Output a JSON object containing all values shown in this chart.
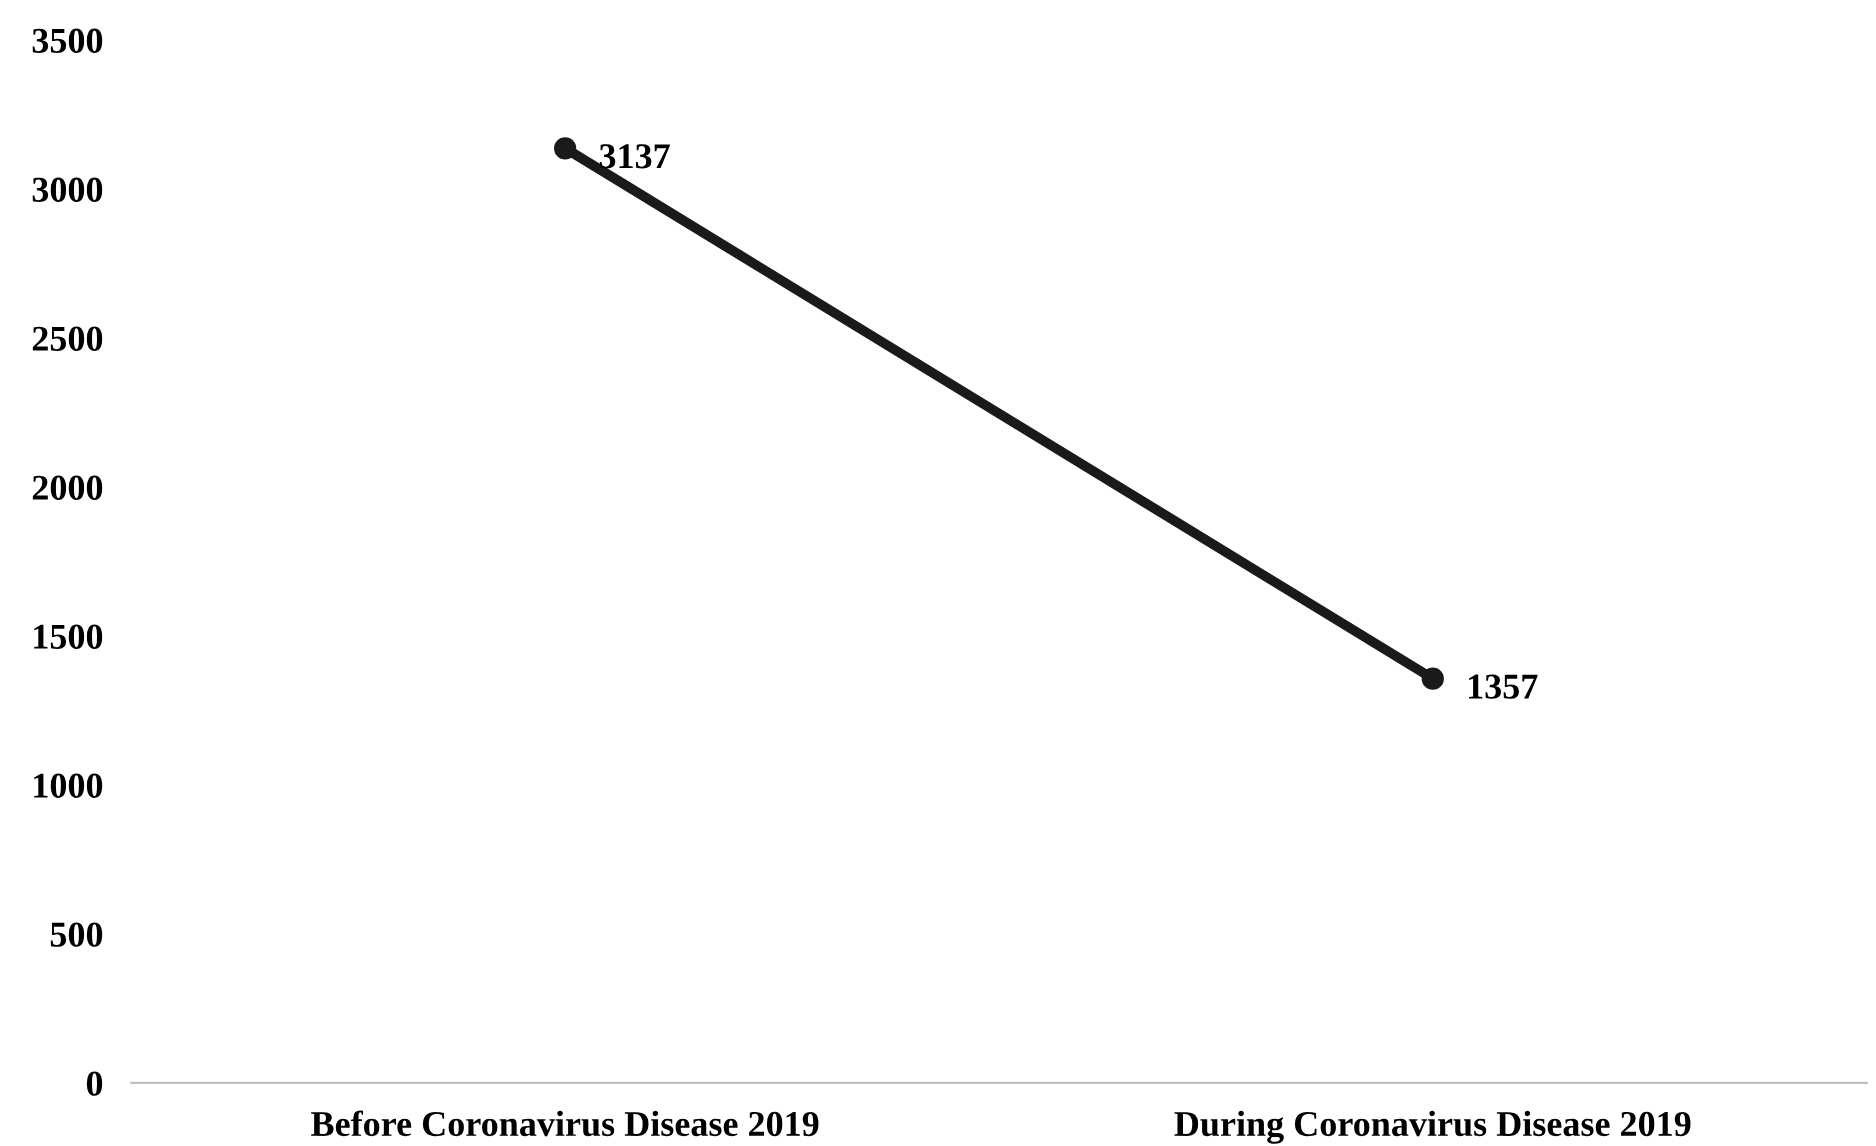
{
  "chart_data": {
    "type": "line",
    "categories": [
      "Before Coronavirus Disease 2019",
      "During Coronavirus Disease 2019"
    ],
    "series": [
      {
        "color": "#1a1a1a",
        "values": [
          3137,
          1357
        ]
      }
    ],
    "ylim": [
      0,
      3500
    ],
    "yticks": [
      0,
      500,
      1000,
      1500,
      2000,
      2500,
      3000,
      3500
    ],
    "marker": "circle",
    "line_style": "solid",
    "data_labels": true,
    "grid": false
  }
}
